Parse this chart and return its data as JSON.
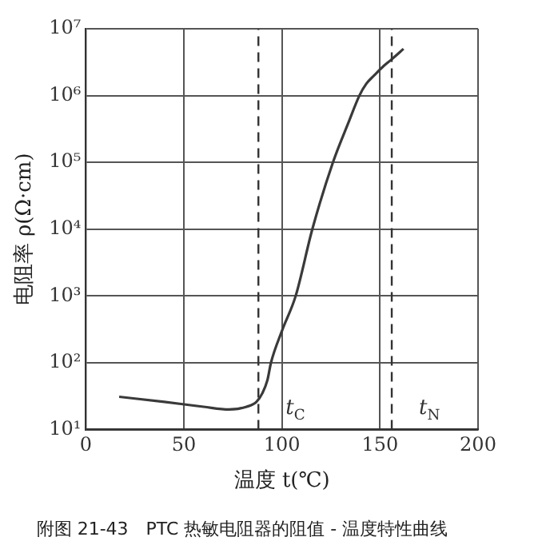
{
  "chart_data": {
    "type": "line",
    "title": "附图 21-43　PTC 热敏电阻器的阻值 - 温度特性曲线",
    "xlabel": "温度 t(℃)",
    "ylabel": "电阻率 ρ(Ω·cm)",
    "x": [
      17,
      40,
      60,
      73,
      82,
      87,
      90,
      92.6,
      94.4,
      100,
      107,
      115.5,
      126,
      134,
      139.5,
      143,
      147,
      152,
      156,
      162
    ],
    "series": [
      {
        "color": "#3a3a3a",
        "values": [
          31,
          26,
          22,
          20,
          22,
          26,
          35,
          55,
          100,
          300,
          1000,
          10000,
          100000,
          400000,
          1000000,
          1500000,
          2000000,
          2800000,
          3500000,
          5000000
        ]
      }
    ],
    "log": "y",
    "xlim": [
      0,
      200
    ],
    "xticks": [
      0,
      50,
      100,
      150,
      200
    ],
    "ylim": [
      10,
      10000000
    ],
    "yticks": [
      {
        "value": 10,
        "label": "10¹"
      },
      {
        "value": 100,
        "label": "10²"
      },
      {
        "value": 1000,
        "label": "10³"
      },
      {
        "value": 10000,
        "label": "10⁴"
      },
      {
        "value": 100000,
        "label": "10⁵"
      },
      {
        "value": 1000000,
        "label": "10⁶"
      },
      {
        "value": 10000000,
        "label": "10⁷"
      }
    ],
    "ref_lines": [
      {
        "axis": "x",
        "value": 88,
        "label": "t$_{C}$",
        "line_style": "dashed"
      },
      {
        "axis": "x",
        "value": 156,
        "label": "t$_{N}$",
        "line_style": "dashed"
      }
    ],
    "grid": true,
    "legend": false,
    "marker": "none",
    "line_style": "solid"
  }
}
